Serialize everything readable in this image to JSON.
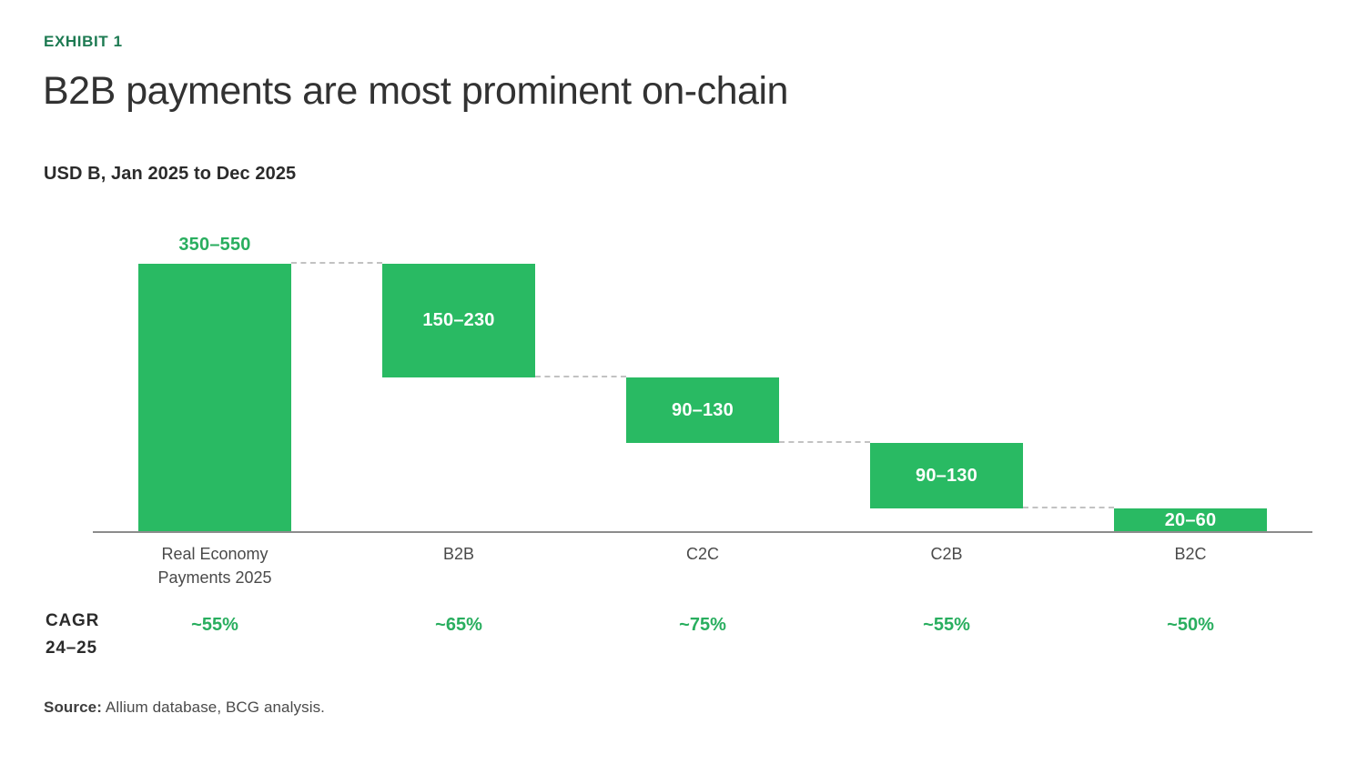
{
  "exhibit_label": "EXHIBIT 1",
  "title": "B2B payments are most prominent on-chain",
  "subtitle": "USD B, Jan 2025 to Dec 2025",
  "cagr_row_label": "CAGR\n24–25",
  "source": {
    "label": "Source:",
    "text": " Allium database, BCG analysis."
  },
  "colors": {
    "bar_fill": "#29BA63",
    "green_text": "#29AE5F",
    "exhibit_green": "#1D7A52",
    "axis_gray": "#8C8C8C",
    "connector_gray": "#C2C2C2"
  },
  "chart_data": {
    "type": "bar",
    "subtype": "waterfall-breakdown",
    "title": "B2B payments are most prominent on-chain",
    "unit_label": "USD B, Jan 2025 to Dec 2025",
    "grid": false,
    "legend": false,
    "value_axis_range": [
      0,
      450
    ],
    "categories": [
      "Real Economy\nPayments 2025",
      "B2B",
      "C2C",
      "C2B",
      "B2C"
    ],
    "segments": [
      {
        "category": "Real Economy\nPayments 2025",
        "label": "350–550",
        "range": [
          350,
          550
        ],
        "label_position": "above",
        "cagr": "~55%"
      },
      {
        "category": "B2B",
        "label": "150–230",
        "range": [
          150,
          230
        ],
        "label_position": "inside",
        "cagr": "~65%"
      },
      {
        "category": "C2C",
        "label": "90–130",
        "range": [
          90,
          130
        ],
        "label_position": "inside",
        "cagr": "~75%"
      },
      {
        "category": "C2B",
        "label": "90–130",
        "range": [
          90,
          130
        ],
        "label_position": "inside",
        "cagr": "~55%"
      },
      {
        "category": "B2C",
        "label": "20–60",
        "range": [
          20,
          60
        ],
        "label_position": "inside",
        "cagr": "~50%"
      }
    ],
    "cagr_axis_label": "CAGR 24–25",
    "source": "Allium database, BCG analysis."
  }
}
